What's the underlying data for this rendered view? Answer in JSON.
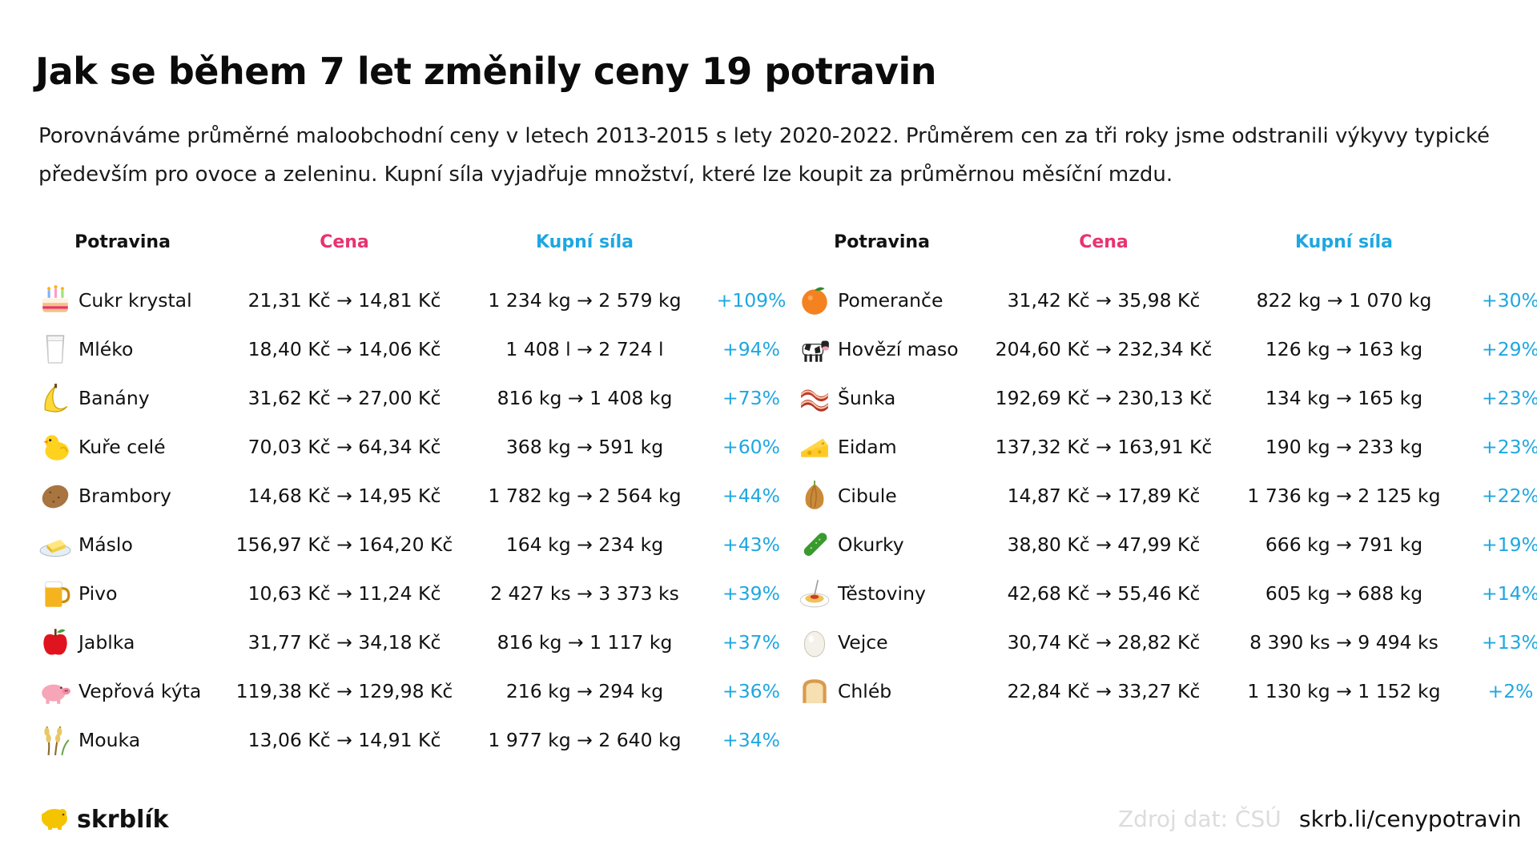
{
  "title": "Jak se během 7 let změnily ceny 19 potravin",
  "subtitle": "Porovnáváme průměrné maloobchodní ceny v letech 2013-2015 s lety 2020-2022. Průměrem cen za tři roky jsme odstranili výkyvy typické především pro ovoce a zeleninu. Kupní síla vyjadřuje množství, které lze koupit za průměrnou měsíční mzdu.",
  "headers": {
    "food": "Potravina",
    "price": "Cena",
    "power": "Kupní síla"
  },
  "colors": {
    "price_header": "#e8336f",
    "power_header": "#1ea7e1",
    "percent": "#1ea7e1"
  },
  "chart_data": {
    "type": "table",
    "columns": [
      "Potravina",
      "Cena",
      "Kupní síla",
      ""
    ],
    "left": [
      {
        "icon": "cake-icon",
        "food": "Cukr krystal",
        "price": "21,31 Kč → 14,81 Kč",
        "power": "1 234 kg → 2 579 kg",
        "change": "+109%"
      },
      {
        "icon": "milk-glass-icon",
        "food": "Mléko",
        "price": "18,40 Kč → 14,06 Kč",
        "power": "1 408 l → 2 724 l",
        "change": "+94%"
      },
      {
        "icon": "banana-icon",
        "food": "Banány",
        "price": "31,62 Kč → 27,00 Kč",
        "power": "816 kg → 1 408 kg",
        "change": "+73%"
      },
      {
        "icon": "chick-icon",
        "food": "Kuře celé",
        "price": "70,03 Kč → 64,34 Kč",
        "power": "368 kg → 591 kg",
        "change": "+60%"
      },
      {
        "icon": "potato-icon",
        "food": "Brambory",
        "price": "14,68 Kč → 14,95 Kč",
        "power": "1 782 kg → 2 564 kg",
        "change": "+44%"
      },
      {
        "icon": "butter-icon",
        "food": "Máslo",
        "price": "156,97 Kč → 164,20 Kč",
        "power": "164 kg → 234 kg",
        "change": "+43%"
      },
      {
        "icon": "beer-icon",
        "food": "Pivo",
        "price": "10,63 Kč → 11,24 Kč",
        "power": "2 427 ks → 3 373 ks",
        "change": "+39%"
      },
      {
        "icon": "apple-icon",
        "food": "Jablka",
        "price": "31,77 Kč → 34,18 Kč",
        "power": "816 kg → 1 117 kg",
        "change": "+37%"
      },
      {
        "icon": "pig-icon",
        "food": "Vepřová kýta",
        "price": "119,38 Kč → 129,98 Kč",
        "power": "216 kg → 294 kg",
        "change": "+36%"
      },
      {
        "icon": "wheat-icon",
        "food": "Mouka",
        "price": "13,06 Kč → 14,91 Kč",
        "power": "1 977 kg → 2 640 kg",
        "change": "+34%"
      }
    ],
    "right": [
      {
        "icon": "orange-icon",
        "food": "Pomeranče",
        "price": "31,42 Kč → 35,98 Kč",
        "power": "822 kg → 1 070 kg",
        "change": "+30%"
      },
      {
        "icon": "cow-icon",
        "food": "Hovězí maso",
        "price": "204,60 Kč → 232,34 Kč",
        "power": "126 kg → 163 kg",
        "change": "+29%"
      },
      {
        "icon": "bacon-icon",
        "food": "Šunka",
        "price": "192,69 Kč → 230,13 Kč",
        "power": "134 kg → 165 kg",
        "change": "+23%"
      },
      {
        "icon": "cheese-icon",
        "food": "Eidam",
        "price": "137,32 Kč → 163,91 Kč",
        "power": "190 kg → 233 kg",
        "change": "+23%"
      },
      {
        "icon": "onion-icon",
        "food": "Cibule",
        "price": "14,87 Kč → 17,89 Kč",
        "power": "1 736 kg → 2 125 kg",
        "change": "+22%"
      },
      {
        "icon": "cucumber-icon",
        "food": "Okurky",
        "price": "38,80 Kč → 47,99 Kč",
        "power": "666 kg → 791 kg",
        "change": "+19%"
      },
      {
        "icon": "spaghetti-icon",
        "food": "Těstoviny",
        "price": "42,68 Kč → 55,46 Kč",
        "power": "605 kg → 688 kg",
        "change": "+14%"
      },
      {
        "icon": "egg-icon",
        "food": "Vejce",
        "price": "30,74 Kč → 28,82 Kč",
        "power": "8 390 ks → 9 494 ks",
        "change": "+13%"
      },
      {
        "icon": "bread-icon",
        "food": "Chléb",
        "price": "22,84 Kč → 33,27 Kč",
        "power": "1 130 kg → 1 152 kg",
        "change": "+2%"
      }
    ]
  },
  "footer": {
    "brand": "skrblík",
    "brand_icon": "piggy-bank-icon",
    "source": "Zdroj dat: ČSÚ",
    "url": "skrb.li/cenypotravin"
  }
}
